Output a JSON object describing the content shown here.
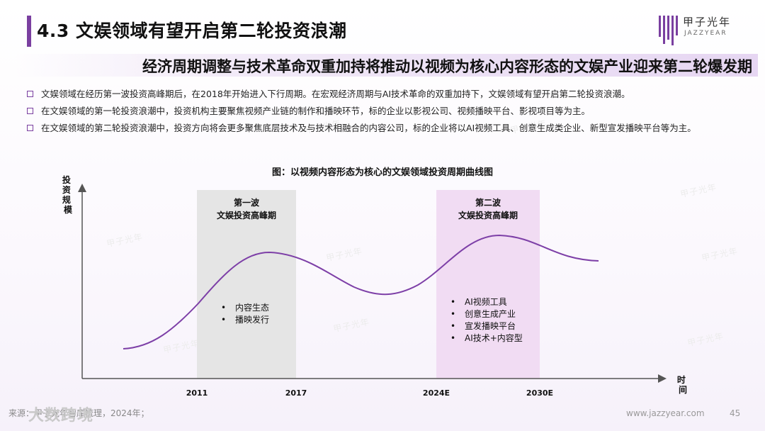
{
  "header": {
    "title": "4.3 文娱领域有望开启第二轮投资浪潮",
    "subtitle": "经济周期调整与技术革命双重加持将推动以视频为核心内容形态的文娱产业迎来第二轮爆发期"
  },
  "logo": {
    "name": "甲子光年",
    "sub": "JAZZYEAR"
  },
  "bullets": [
    "文娱领域在经历第一波投资高峰期后，在2018年开始进入下行周期。在宏观经济周期与AI技术革命的双重加持下，文娱领域有望开启第二轮投资浪潮。",
    "在文娱领域的第一轮投资浪潮中，投资机构主要聚焦视频产业链的制作和播映环节，标的企业以影视公司、视频播映平台、影视项目等为主。",
    "在文娱领域的第二轮投资浪潮中，投资方向将会更多聚焦底层技术及与技术相融合的内容公司，标的企业将以AI视频工具、创意生成类企业、新型宣发播映平台等为主。"
  ],
  "chart_data": {
    "type": "line",
    "title": "图：以视频内容形态为核心的文娱领域投资周期曲线图",
    "ylabel": "投资规模",
    "xlabel": "时间",
    "x_ticks": [
      "2011",
      "2017",
      "2024E",
      "2030E"
    ],
    "waves": [
      {
        "label_line1": "第一波",
        "label_line2": "文娱投资高峰期",
        "from": "2011",
        "to": "2017",
        "color": "#e5e5e5",
        "items": [
          "内容生态",
          "播映发行"
        ]
      },
      {
        "label_line1": "第二波",
        "label_line2": "文娱投资高峰期",
        "from": "2024E",
        "to": "2030E",
        "color": "#f1dcf3",
        "items": [
          "AI视频工具",
          "创意生成产业",
          "宣发播映平台",
          "AI技术+内容型"
        ]
      }
    ],
    "curve_color": "#7d3fa7"
  },
  "footer": {
    "source": "来源：甲子光年智库梳理，2024年；",
    "brand": "大数跨境",
    "url": "www.jazzyear.com",
    "page": "45"
  },
  "watermark": "甲子光年"
}
